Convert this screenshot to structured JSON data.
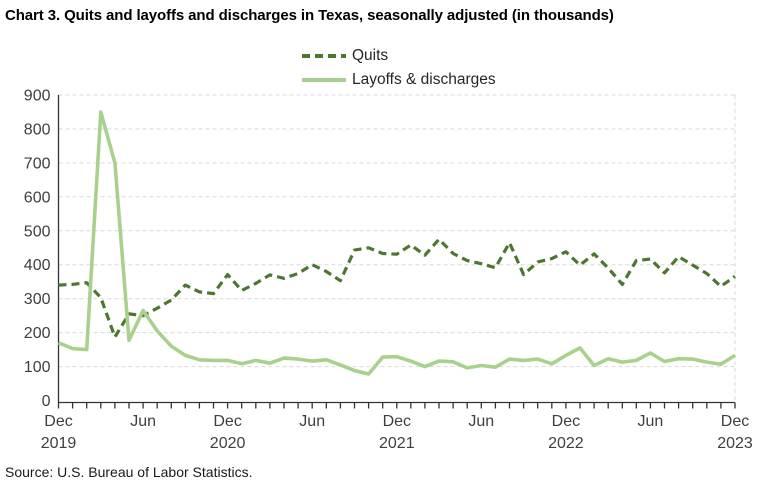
{
  "title": "Chart 3. Quits and layoffs and discharges in Texas, seasonally adjusted (in thousands)",
  "source": "Source: U.S. Bureau of Labor Statistics.",
  "chart_data": {
    "type": "line",
    "title": "Chart 3. Quits and layoffs and discharges in Texas, seasonally adjusted (in thousands)",
    "xlabel": "",
    "ylabel": "",
    "y_axis": {
      "min": 0,
      "max": 900,
      "step": 100
    },
    "grid": "horizontal-dashed",
    "legend_position": "top-center",
    "x_labels": [
      "Dec 2019",
      "Jan 2020",
      "Feb 2020",
      "Mar 2020",
      "Apr 2020",
      "May 2020",
      "Jun 2020",
      "Jul 2020",
      "Aug 2020",
      "Sep 2020",
      "Oct 2020",
      "Nov 2020",
      "Dec 2020",
      "Jan 2021",
      "Feb 2021",
      "Mar 2021",
      "Apr 2021",
      "May 2021",
      "Jun 2021",
      "Jul 2021",
      "Aug 2021",
      "Sep 2021",
      "Oct 2021",
      "Nov 2021",
      "Dec 2021",
      "Jan 2022",
      "Feb 2022",
      "Mar 2022",
      "Apr 2022",
      "May 2022",
      "Jun 2022",
      "Jul 2022",
      "Aug 2022",
      "Sep 2022",
      "Oct 2022",
      "Nov 2022",
      "Dec 2022",
      "Jan 2023",
      "Feb 2023",
      "Mar 2023",
      "Apr 2023",
      "May 2023",
      "Jun 2023",
      "Jul 2023",
      "Aug 2023",
      "Sep 2023",
      "Oct 2023",
      "Nov 2023",
      "Dec 2023"
    ],
    "x_ticks": [
      {
        "m": 0,
        "month": "Dec",
        "year": "2019"
      },
      {
        "m": 6,
        "month": "Jun"
      },
      {
        "m": 12,
        "month": "Dec",
        "year": "2020"
      },
      {
        "m": 18,
        "month": "Jun"
      },
      {
        "m": 24,
        "month": "Dec",
        "year": "2021"
      },
      {
        "m": 30,
        "month": "Jun"
      },
      {
        "m": 36,
        "month": "Dec",
        "year": "2022"
      },
      {
        "m": 42,
        "month": "Jun"
      },
      {
        "m": 48,
        "month": "Dec",
        "year": "2023"
      }
    ],
    "series": [
      {
        "id": "quits",
        "name": "Quits",
        "color": "#4d7630",
        "style": "dashed",
        "dash": "8 5",
        "width": 3.2,
        "values": [
          340,
          342,
          347,
          303,
          187,
          255,
          250,
          272,
          296,
          340,
          320,
          315,
          371,
          324,
          345,
          370,
          360,
          374,
          400,
          380,
          353,
          443,
          450,
          433,
          431,
          458,
          428,
          475,
          433,
          412,
          403,
          391,
          465,
          371,
          408,
          418,
          438,
          399,
          432,
          390,
          342,
          412,
          417,
          376,
          424,
          399,
          374,
          336,
          366
        ]
      },
      {
        "id": "layoffs",
        "name": "Layoffs & discharges",
        "color": "#a9d18e",
        "style": "solid",
        "dash": null,
        "width": 3.6,
        "values": [
          170,
          153,
          150,
          850,
          700,
          177,
          265,
          205,
          160,
          133,
          120,
          118,
          118,
          108,
          118,
          110,
          125,
          122,
          116,
          120,
          105,
          88,
          78,
          128,
          129,
          116,
          100,
          116,
          114,
          96,
          103,
          98,
          122,
          118,
          122,
          108,
          133,
          155,
          103,
          123,
          113,
          118,
          140,
          115,
          123,
          122,
          113,
          107,
          133
        ]
      }
    ]
  }
}
